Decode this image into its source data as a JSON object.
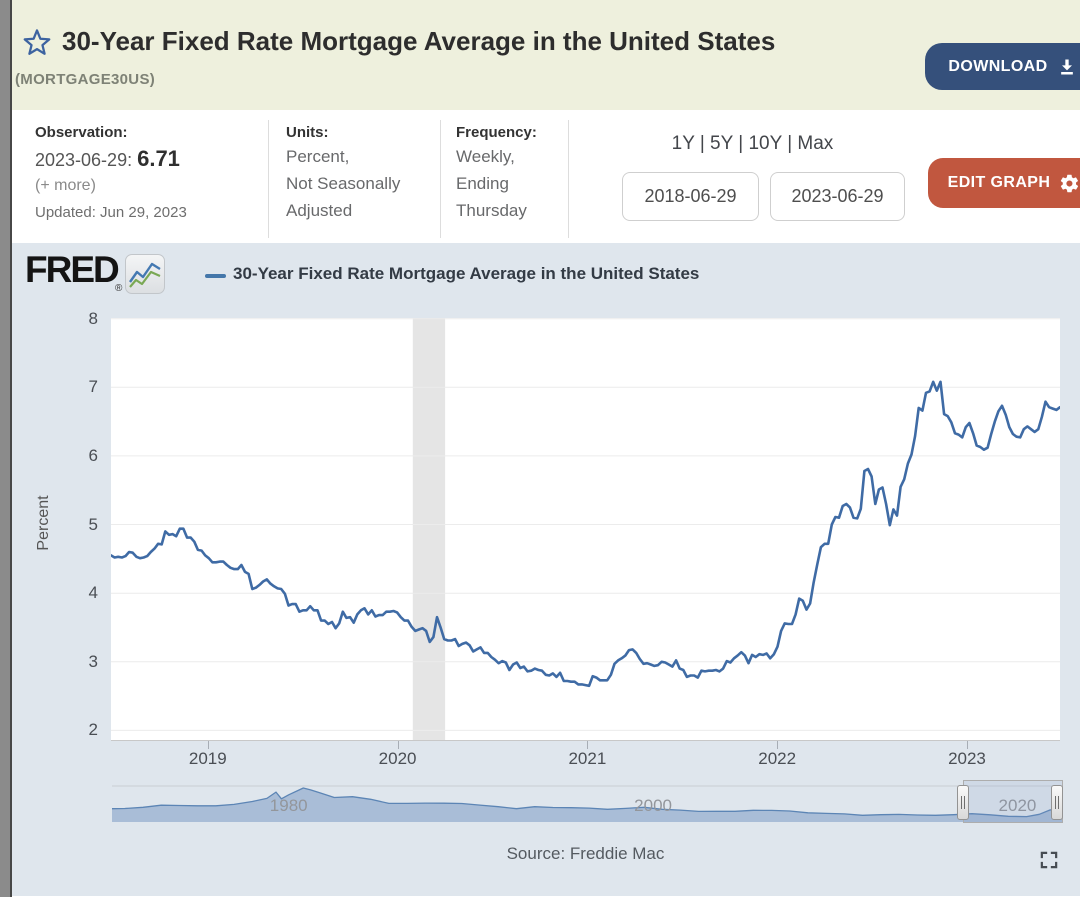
{
  "page": {
    "title": "30-Year Fixed Rate Mortgage Average in the United States",
    "series_id": "(MORTGAGE30US)",
    "download_label": "DOWNLOAD",
    "edit_graph_label": "EDIT GRAPH"
  },
  "meta": {
    "observation": {
      "label": "Observation:",
      "date_prefix": "2023-06-29:",
      "value": "6.71",
      "more": "(+ more)",
      "updated": "Updated: Jun 29, 2023"
    },
    "units": {
      "label": "Units:",
      "lines": [
        "Percent,",
        "Not Seasonally",
        "Adjusted"
      ]
    },
    "frequency": {
      "label": "Frequency:",
      "lines": [
        "Weekly,",
        "Ending",
        "Thursday"
      ]
    },
    "range_links": "1Y | 5Y | 10Y | Max",
    "date_start": "2018-06-29",
    "date_end": "2023-06-29"
  },
  "graph": {
    "brand": "FRED",
    "reg": "®",
    "legend_label": "30-Year Fixed Rate Mortgage Average in the United States",
    "ylabel": "Percent",
    "source": "Source: Freddie Mac"
  },
  "colors": {
    "header_bg": "#eef0dd",
    "download_bg": "#35507b",
    "edit_graph_bg": "#c1573f",
    "chart_bg": "#dfe6ed",
    "line": "#3f6ba5",
    "recession_band": "#e5e5e5",
    "navigator_fill": "#9db3d2",
    "star_blue": "#3d63a0"
  },
  "chart_data": {
    "type": "line",
    "title": "30-Year Fixed Rate Mortgage Average in the United States",
    "ylabel": "Percent",
    "ylim": [
      2,
      8
    ],
    "yticks": [
      2,
      3,
      4,
      5,
      6,
      7,
      8
    ],
    "xticks": [
      2019,
      2020,
      2021,
      2022,
      2023
    ],
    "x_range": [
      "2018-06-28",
      "2023-06-29"
    ],
    "frequency": "weekly",
    "units": "Percent",
    "grid": true,
    "legend_position": "top",
    "recession_band": {
      "start_year": 2020.08,
      "end_year": 2020.25
    },
    "values": [
      4.55,
      4.52,
      4.53,
      4.52,
      4.54,
      4.6,
      4.59,
      4.53,
      4.51,
      4.52,
      4.54,
      4.6,
      4.65,
      4.72,
      4.71,
      4.9,
      4.85,
      4.86,
      4.83,
      4.94,
      4.94,
      4.81,
      4.81,
      4.75,
      4.63,
      4.62,
      4.55,
      4.51,
      4.45,
      4.45,
      4.46,
      4.46,
      4.41,
      4.37,
      4.35,
      4.35,
      4.41,
      4.31,
      4.28,
      4.06,
      4.08,
      4.12,
      4.17,
      4.2,
      4.14,
      4.1,
      4.07,
      4.06,
      3.99,
      3.82,
      3.84,
      3.84,
      3.73,
      3.75,
      3.75,
      3.81,
      3.75,
      3.75,
      3.6,
      3.6,
      3.55,
      3.58,
      3.49,
      3.56,
      3.73,
      3.64,
      3.65,
      3.57,
      3.69,
      3.75,
      3.78,
      3.69,
      3.75,
      3.66,
      3.68,
      3.68,
      3.73,
      3.73,
      3.74,
      3.72,
      3.65,
      3.6,
      3.6,
      3.51,
      3.45,
      3.47,
      3.49,
      3.45,
      3.29,
      3.36,
      3.65,
      3.5,
      3.33,
      3.31,
      3.31,
      3.33,
      3.23,
      3.26,
      3.28,
      3.24,
      3.15,
      3.18,
      3.21,
      3.13,
      3.13,
      3.07,
      3.03,
      2.98,
      3.01,
      2.99,
      2.88,
      2.96,
      2.99,
      2.91,
      2.93,
      2.86,
      2.87,
      2.9,
      2.88,
      2.87,
      2.81,
      2.8,
      2.83,
      2.78,
      2.84,
      2.72,
      2.72,
      2.71,
      2.71,
      2.67,
      2.67,
      2.66,
      2.65,
      2.79,
      2.77,
      2.73,
      2.73,
      2.73,
      2.81,
      2.97,
      3.02,
      3.05,
      3.09,
      3.17,
      3.18,
      3.13,
      3.04,
      2.97,
      2.98,
      2.96,
      2.94,
      2.95,
      3.0,
      2.99,
      2.96,
      2.93,
      3.02,
      2.9,
      2.88,
      2.78,
      2.8,
      2.8,
      2.77,
      2.87,
      2.86,
      2.87,
      2.87,
      2.88,
      2.86,
      2.9,
      3.01,
      2.99,
      3.05,
      3.09,
      3.14,
      3.09,
      2.98,
      3.1,
      3.07,
      3.11,
      3.1,
      3.12,
      3.05,
      3.11,
      3.22,
      3.45,
      3.56,
      3.55,
      3.55,
      3.69,
      3.92,
      3.89,
      3.76,
      3.85,
      4.16,
      4.42,
      4.67,
      4.72,
      4.72,
      5.0,
      5.11,
      5.1,
      5.27,
      5.3,
      5.25,
      5.1,
      5.09,
      5.23,
      5.78,
      5.81,
      5.7,
      5.3,
      5.51,
      5.54,
      5.3,
      4.99,
      5.22,
      5.13,
      5.55,
      5.66,
      5.89,
      6.02,
      6.29,
      6.7,
      6.66,
      6.92,
      6.94,
      7.08,
      6.95,
      7.08,
      6.61,
      6.58,
      6.49,
      6.33,
      6.31,
      6.27,
      6.42,
      6.48,
      6.33,
      6.15,
      6.13,
      6.09,
      6.12,
      6.32,
      6.5,
      6.65,
      6.73,
      6.6,
      6.42,
      6.32,
      6.28,
      6.27,
      6.39,
      6.43,
      6.39,
      6.35,
      6.39,
      6.57,
      6.79,
      6.71,
      6.69,
      6.67,
      6.71
    ],
    "navigator": {
      "type": "area",
      "x_range": [
        1971.3,
        2023.5
      ],
      "labels": [
        1980,
        2000,
        2020
      ],
      "selected": [
        2018.5,
        2023.5
      ],
      "points": [
        [
          1971.3,
          7.3
        ],
        [
          1972,
          7.38
        ],
        [
          1973,
          8.04
        ],
        [
          1974,
          9.19
        ],
        [
          1975,
          9.05
        ],
        [
          1976,
          8.87
        ],
        [
          1977,
          8.85
        ],
        [
          1978,
          9.64
        ],
        [
          1979,
          11.2
        ],
        [
          1979.8,
          12.9
        ],
        [
          1980.3,
          16.35
        ],
        [
          1980.6,
          12.7
        ],
        [
          1981,
          14.9
        ],
        [
          1981.8,
          18.63
        ],
        [
          1982.2,
          17.6
        ],
        [
          1982.7,
          16.0
        ],
        [
          1983.5,
          13.4
        ],
        [
          1984.5,
          13.88
        ],
        [
          1985.5,
          12.43
        ],
        [
          1986.5,
          10.19
        ],
        [
          1987.5,
          10.21
        ],
        [
          1988.5,
          10.34
        ],
        [
          1989.5,
          10.32
        ],
        [
          1990.5,
          10.13
        ],
        [
          1991.5,
          9.25
        ],
        [
          1992.5,
          8.39
        ],
        [
          1993.5,
          7.31
        ],
        [
          1994.5,
          8.38
        ],
        [
          1995.5,
          7.93
        ],
        [
          1996.5,
          7.81
        ],
        [
          1997.5,
          7.6
        ],
        [
          1998.5,
          6.94
        ],
        [
          1999.5,
          7.44
        ],
        [
          2000.5,
          8.05
        ],
        [
          2001.5,
          6.97
        ],
        [
          2002.5,
          6.54
        ],
        [
          2003.5,
          5.83
        ],
        [
          2004.5,
          5.84
        ],
        [
          2005.5,
          5.87
        ],
        [
          2006.5,
          6.41
        ],
        [
          2007.5,
          6.34
        ],
        [
          2008.5,
          6.03
        ],
        [
          2009.5,
          5.04
        ],
        [
          2010.5,
          4.69
        ],
        [
          2011.5,
          4.45
        ],
        [
          2012.5,
          3.66
        ],
        [
          2013.5,
          3.98
        ],
        [
          2014.5,
          4.17
        ],
        [
          2015.5,
          3.85
        ],
        [
          2016.5,
          3.65
        ],
        [
          2017.5,
          3.99
        ],
        [
          2018.5,
          4.54
        ],
        [
          2019.5,
          3.94
        ],
        [
          2020.5,
          3.11
        ],
        [
          2021.5,
          2.96
        ],
        [
          2022.2,
          4.2
        ],
        [
          2022.8,
          6.6
        ],
        [
          2023.2,
          6.4
        ],
        [
          2023.5,
          6.7
        ]
      ]
    }
  }
}
